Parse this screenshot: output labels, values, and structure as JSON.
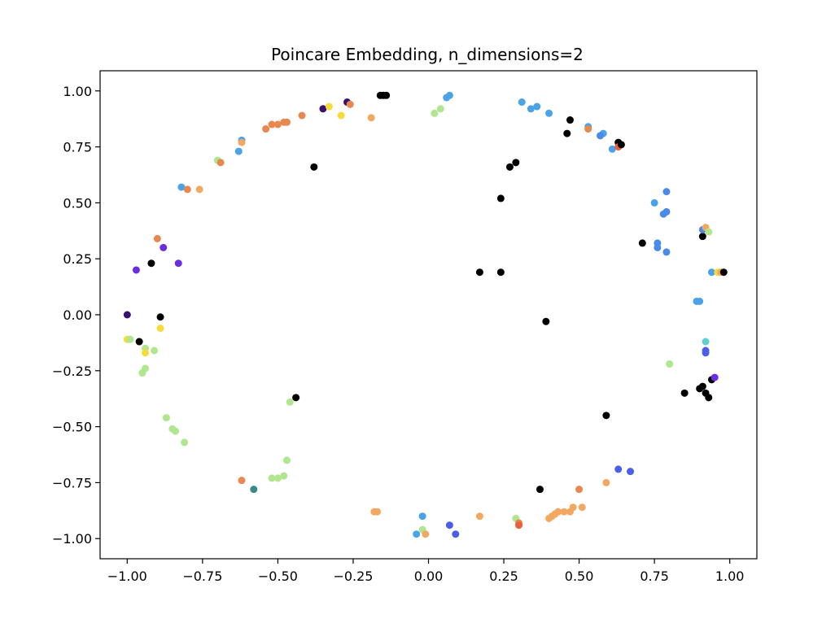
{
  "chart_data": {
    "type": "scatter",
    "title": "Poincare Embedding, n_dimensions=2",
    "xlabel": "",
    "ylabel": "",
    "xlim": [
      -1.09,
      1.09
    ],
    "ylim": [
      -1.09,
      1.09
    ],
    "xticks": [
      -1.0,
      -0.75,
      -0.5,
      -0.25,
      0.0,
      0.25,
      0.5,
      0.75,
      1.0
    ],
    "xtick_labels": [
      "−1.00",
      "−0.75",
      "−0.50",
      "−0.25",
      "0.00",
      "0.25",
      "0.50",
      "0.75",
      "1.00"
    ],
    "yticks": [
      -1.0,
      -0.75,
      -0.5,
      -0.25,
      0.0,
      0.25,
      0.5,
      0.75,
      1.0
    ],
    "ytick_labels": [
      "−1.00",
      "−0.75",
      "−0.50",
      "−0.25",
      "0.00",
      "0.25",
      "0.50",
      "0.75",
      "1.00"
    ],
    "grid": false,
    "legend": "none",
    "points": [
      {
        "x": -0.16,
        "y": 0.98,
        "color": "#000000"
      },
      {
        "x": -0.15,
        "y": 0.98,
        "color": "#000000"
      },
      {
        "x": -0.14,
        "y": 0.98,
        "color": "#000000"
      },
      {
        "x": -0.27,
        "y": 0.95,
        "color": "#3b0f70"
      },
      {
        "x": -0.26,
        "y": 0.94,
        "color": "#e8884f"
      },
      {
        "x": -0.35,
        "y": 0.92,
        "color": "#3b0f70"
      },
      {
        "x": -0.33,
        "y": 0.93,
        "color": "#f5dc3c"
      },
      {
        "x": -0.29,
        "y": 0.89,
        "color": "#f5dc3c"
      },
      {
        "x": -0.42,
        "y": 0.89,
        "color": "#e8884f"
      },
      {
        "x": -0.19,
        "y": 0.88,
        "color": "#f2a860"
      },
      {
        "x": -0.48,
        "y": 0.86,
        "color": "#e8884f"
      },
      {
        "x": -0.47,
        "y": 0.86,
        "color": "#e8884f"
      },
      {
        "x": -0.5,
        "y": 0.85,
        "color": "#e8884f"
      },
      {
        "x": -0.52,
        "y": 0.85,
        "color": "#e8884f"
      },
      {
        "x": -0.54,
        "y": 0.83,
        "color": "#e8884f"
      },
      {
        "x": -0.62,
        "y": 0.78,
        "color": "#4aa3e8"
      },
      {
        "x": -0.62,
        "y": 0.77,
        "color": "#f2a860"
      },
      {
        "x": -0.63,
        "y": 0.73,
        "color": "#4aa3e8"
      },
      {
        "x": -0.7,
        "y": 0.69,
        "color": "#b0e68e"
      },
      {
        "x": -0.69,
        "y": 0.68,
        "color": "#e8884f"
      },
      {
        "x": -0.38,
        "y": 0.66,
        "color": "#000000"
      },
      {
        "x": -0.82,
        "y": 0.57,
        "color": "#4aa3e8"
      },
      {
        "x": -0.8,
        "y": 0.56,
        "color": "#e8884f"
      },
      {
        "x": -0.76,
        "y": 0.56,
        "color": "#f2a860"
      },
      {
        "x": -0.9,
        "y": 0.34,
        "color": "#e8884f"
      },
      {
        "x": -0.88,
        "y": 0.3,
        "color": "#6a2ee0"
      },
      {
        "x": -0.92,
        "y": 0.23,
        "color": "#000000"
      },
      {
        "x": -0.83,
        "y": 0.23,
        "color": "#6a2ee0"
      },
      {
        "x": -0.97,
        "y": 0.2,
        "color": "#6a2ee0"
      },
      {
        "x": -1.0,
        "y": 0.0,
        "color": "#3b0f70"
      },
      {
        "x": -0.89,
        "y": -0.01,
        "color": "#000000"
      },
      {
        "x": -0.89,
        "y": -0.06,
        "color": "#f5dc3c"
      },
      {
        "x": -1.0,
        "y": -0.11,
        "color": "#f5dc3c"
      },
      {
        "x": -0.99,
        "y": -0.11,
        "color": "#b0e68e"
      },
      {
        "x": -0.96,
        "y": -0.12,
        "color": "#000000"
      },
      {
        "x": -0.94,
        "y": -0.15,
        "color": "#b0e68e"
      },
      {
        "x": -0.94,
        "y": -0.17,
        "color": "#f5dc3c"
      },
      {
        "x": -0.91,
        "y": -0.16,
        "color": "#b0e68e"
      },
      {
        "x": -0.94,
        "y": -0.24,
        "color": "#b0e68e"
      },
      {
        "x": -0.95,
        "y": -0.26,
        "color": "#b0e68e"
      },
      {
        "x": -0.87,
        "y": -0.46,
        "color": "#b0e68e"
      },
      {
        "x": -0.85,
        "y": -0.51,
        "color": "#b0e68e"
      },
      {
        "x": -0.84,
        "y": -0.52,
        "color": "#b0e68e"
      },
      {
        "x": -0.81,
        "y": -0.57,
        "color": "#b0e68e"
      },
      {
        "x": -0.46,
        "y": -0.39,
        "color": "#b0e68e"
      },
      {
        "x": -0.44,
        "y": -0.37,
        "color": "#000000"
      },
      {
        "x": -0.47,
        "y": -0.65,
        "color": "#b0e68e"
      },
      {
        "x": -0.52,
        "y": -0.73,
        "color": "#b0e68e"
      },
      {
        "x": -0.5,
        "y": -0.73,
        "color": "#b0e68e"
      },
      {
        "x": -0.48,
        "y": -0.72,
        "color": "#b0e68e"
      },
      {
        "x": -0.62,
        "y": -0.74,
        "color": "#e8884f"
      },
      {
        "x": -0.58,
        "y": -0.78,
        "color": "#3a8a8a"
      },
      {
        "x": -0.18,
        "y": -0.88,
        "color": "#f2a860"
      },
      {
        "x": -0.17,
        "y": -0.88,
        "color": "#f2a860"
      },
      {
        "x": -0.02,
        "y": -0.9,
        "color": "#4aa3e8"
      },
      {
        "x": -0.02,
        "y": -0.96,
        "color": "#b0e68e"
      },
      {
        "x": -0.04,
        "y": -0.98,
        "color": "#4aa3e8"
      },
      {
        "x": -0.01,
        "y": -0.98,
        "color": "#f2a860"
      },
      {
        "x": 0.07,
        "y": -0.94,
        "color": "#4a5ee8"
      },
      {
        "x": 0.09,
        "y": -0.98,
        "color": "#4a5ee8"
      },
      {
        "x": 0.17,
        "y": -0.9,
        "color": "#f2a860"
      },
      {
        "x": 0.29,
        "y": -0.91,
        "color": "#b0e68e"
      },
      {
        "x": 0.3,
        "y": -0.93,
        "color": "#e8884f"
      },
      {
        "x": 0.3,
        "y": -0.94,
        "color": "#e8603c"
      },
      {
        "x": 0.37,
        "y": -0.78,
        "color": "#000000"
      },
      {
        "x": 0.4,
        "y": -0.91,
        "color": "#f2a860"
      },
      {
        "x": 0.41,
        "y": -0.9,
        "color": "#f2a860"
      },
      {
        "x": 0.42,
        "y": -0.89,
        "color": "#f2a860"
      },
      {
        "x": 0.43,
        "y": -0.88,
        "color": "#f2a860"
      },
      {
        "x": 0.45,
        "y": -0.88,
        "color": "#f2a860"
      },
      {
        "x": 0.47,
        "y": -0.88,
        "color": "#f2a860"
      },
      {
        "x": 0.48,
        "y": -0.86,
        "color": "#f2a860"
      },
      {
        "x": 0.51,
        "y": -0.86,
        "color": "#f2a860"
      },
      {
        "x": 0.5,
        "y": -0.78,
        "color": "#e8884f"
      },
      {
        "x": 0.59,
        "y": -0.75,
        "color": "#f2a860"
      },
      {
        "x": 0.59,
        "y": -0.45,
        "color": "#000000"
      },
      {
        "x": 0.63,
        "y": -0.69,
        "color": "#4a5ee8"
      },
      {
        "x": 0.67,
        "y": -0.7,
        "color": "#4a5ee8"
      },
      {
        "x": 0.8,
        "y": -0.22,
        "color": "#b0e68e"
      },
      {
        "x": 0.85,
        "y": -0.35,
        "color": "#000000"
      },
      {
        "x": 0.9,
        "y": -0.33,
        "color": "#000000"
      },
      {
        "x": 0.91,
        "y": -0.32,
        "color": "#000000"
      },
      {
        "x": 0.92,
        "y": -0.35,
        "color": "#000000"
      },
      {
        "x": 0.93,
        "y": -0.37,
        "color": "#000000"
      },
      {
        "x": 0.94,
        "y": -0.29,
        "color": "#000000"
      },
      {
        "x": 0.95,
        "y": -0.28,
        "color": "#6a2ee0"
      },
      {
        "x": 0.92,
        "y": -0.12,
        "color": "#5fd0d0"
      },
      {
        "x": 0.92,
        "y": -0.16,
        "color": "#4a5ee8"
      },
      {
        "x": 0.92,
        "y": -0.17,
        "color": "#4a5ee8"
      },
      {
        "x": 0.89,
        "y": 0.06,
        "color": "#4aa3e8"
      },
      {
        "x": 0.9,
        "y": 0.06,
        "color": "#4aa3e8"
      },
      {
        "x": 0.39,
        "y": -0.03,
        "color": "#000000"
      },
      {
        "x": 0.94,
        "y": 0.19,
        "color": "#4aa3e8"
      },
      {
        "x": 0.96,
        "y": 0.19,
        "color": "#f5dc3c"
      },
      {
        "x": 0.97,
        "y": 0.19,
        "color": "#f2a860"
      },
      {
        "x": 0.98,
        "y": 0.19,
        "color": "#000000"
      },
      {
        "x": 0.91,
        "y": 0.35,
        "color": "#000000"
      },
      {
        "x": 0.91,
        "y": 0.38,
        "color": "#4a8ae8"
      },
      {
        "x": 0.92,
        "y": 0.39,
        "color": "#f2a860"
      },
      {
        "x": 0.93,
        "y": 0.37,
        "color": "#b0e68e"
      },
      {
        "x": 0.71,
        "y": 0.32,
        "color": "#000000"
      },
      {
        "x": 0.76,
        "y": 0.32,
        "color": "#4a8ae8"
      },
      {
        "x": 0.76,
        "y": 0.3,
        "color": "#4a8ae8"
      },
      {
        "x": 0.79,
        "y": 0.28,
        "color": "#4a8ae8"
      },
      {
        "x": 0.75,
        "y": 0.5,
        "color": "#4aa3e8"
      },
      {
        "x": 0.78,
        "y": 0.45,
        "color": "#4a8ae8"
      },
      {
        "x": 0.79,
        "y": 0.46,
        "color": "#4a8ae8"
      },
      {
        "x": 0.79,
        "y": 0.55,
        "color": "#4a8ae8"
      },
      {
        "x": 0.17,
        "y": 0.19,
        "color": "#000000"
      },
      {
        "x": 0.24,
        "y": 0.19,
        "color": "#000000"
      },
      {
        "x": 0.24,
        "y": 0.52,
        "color": "#000000"
      },
      {
        "x": 0.27,
        "y": 0.66,
        "color": "#000000"
      },
      {
        "x": 0.29,
        "y": 0.68,
        "color": "#000000"
      },
      {
        "x": 0.46,
        "y": 0.81,
        "color": "#000000"
      },
      {
        "x": 0.47,
        "y": 0.87,
        "color": "#000000"
      },
      {
        "x": 0.53,
        "y": 0.84,
        "color": "#4aa3e8"
      },
      {
        "x": 0.53,
        "y": 0.83,
        "color": "#e8884f"
      },
      {
        "x": 0.58,
        "y": 0.81,
        "color": "#4aa3e8"
      },
      {
        "x": 0.57,
        "y": 0.8,
        "color": "#4a8ae8"
      },
      {
        "x": 0.61,
        "y": 0.74,
        "color": "#4aa3e8"
      },
      {
        "x": 0.63,
        "y": 0.77,
        "color": "#000000"
      },
      {
        "x": 0.63,
        "y": 0.75,
        "color": "#e8603c"
      },
      {
        "x": 0.64,
        "y": 0.76,
        "color": "#000000"
      },
      {
        "x": 0.31,
        "y": 0.95,
        "color": "#4aa3e8"
      },
      {
        "x": 0.34,
        "y": 0.92,
        "color": "#4aa3e8"
      },
      {
        "x": 0.36,
        "y": 0.93,
        "color": "#4aa3e8"
      },
      {
        "x": 0.4,
        "y": 0.9,
        "color": "#4aa3e8"
      },
      {
        "x": 0.02,
        "y": 0.9,
        "color": "#b0e68e"
      },
      {
        "x": 0.04,
        "y": 0.92,
        "color": "#b0e68e"
      },
      {
        "x": 0.06,
        "y": 0.97,
        "color": "#4aa3e8"
      },
      {
        "x": 0.07,
        "y": 0.98,
        "color": "#4aa3e8"
      }
    ]
  }
}
